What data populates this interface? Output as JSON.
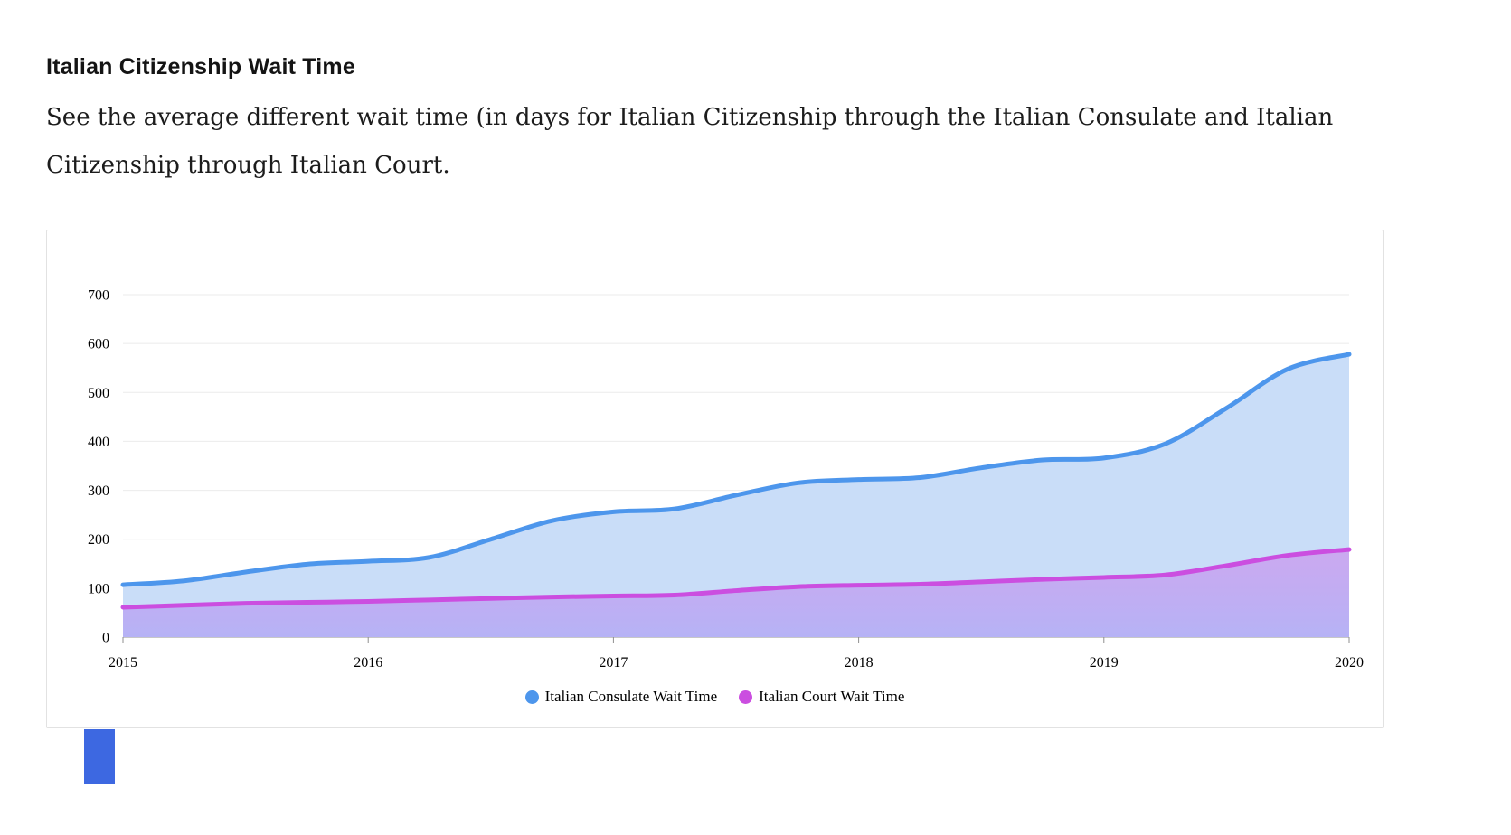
{
  "page": {
    "title": "Italian Citizenship Wait Time",
    "description": "See the average different wait time (in days for Italian Citizenship through the Italian Consulate and Italian Citizenship through Italian Court."
  },
  "chart_data": {
    "type": "area",
    "title": "",
    "xlabel": "",
    "ylabel": "",
    "x": [
      2015,
      2015.25,
      2015.5,
      2015.75,
      2016,
      2016.25,
      2016.5,
      2016.75,
      2017,
      2017.25,
      2017.5,
      2017.75,
      2018,
      2018.25,
      2018.5,
      2018.75,
      2019,
      2019.25,
      2019.5,
      2019.75,
      2020
    ],
    "series": [
      {
        "id": "consulate",
        "name": "Italian Consulate Wait Time",
        "color": "#4D96EC",
        "fill": "#C9DDF8",
        "values": [
          107,
          115,
          133,
          149,
          155,
          163,
          200,
          238,
          256,
          262,
          290,
          315,
          322,
          326,
          346,
          362,
          366,
          395,
          468,
          548,
          578
        ]
      },
      {
        "id": "court",
        "name": "Italian Court Wait Time",
        "color": "#CB4EE0",
        "fill": [
          "rgba(206,90,228,0.40)",
          "rgba(159,127,242,0.45)"
        ],
        "values": [
          61,
          65,
          69,
          71,
          73,
          76,
          79,
          82,
          84,
          86,
          95,
          103,
          106,
          108,
          113,
          118,
          122,
          127,
          146,
          167,
          179
        ]
      }
    ],
    "xticks": [
      2015,
      2016,
      2017,
      2018,
      2019,
      2020
    ],
    "yticks": [
      0,
      100,
      200,
      300,
      400,
      500,
      600,
      700
    ],
    "xlim": [
      2015,
      2020
    ],
    "ylim": [
      0,
      700
    ],
    "grid": "horizontal",
    "legend_position": "bottom"
  },
  "partial_element": {
    "color": "#3D68E1"
  }
}
